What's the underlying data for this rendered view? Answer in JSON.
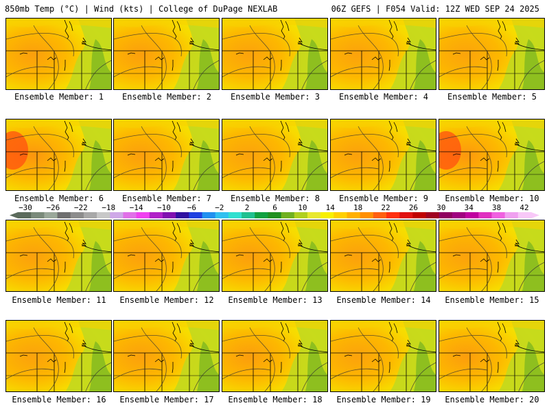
{
  "header": {
    "left": "850mb Temp (°C) | Wind (kts) | College of DuPage NEXLAB",
    "right": "06Z GEFS | F054 Valid: 12Z WED SEP 24 2025"
  },
  "members": [
    {
      "label": "Ensemble Member: 1",
      "heat": 0.55
    },
    {
      "label": "Ensemble Member: 2",
      "heat": 0.55
    },
    {
      "label": "Ensemble Member: 3",
      "heat": 0.45
    },
    {
      "label": "Ensemble Member: 4",
      "heat": 0.45
    },
    {
      "label": "Ensemble Member: 5",
      "heat": 0.4
    },
    {
      "label": "Ensemble Member: 6",
      "heat": 0.8
    },
    {
      "label": "Ensemble Member: 7",
      "heat": 0.55
    },
    {
      "label": "Ensemble Member: 8",
      "heat": 0.45
    },
    {
      "label": "Ensemble Member: 9",
      "heat": 0.5
    },
    {
      "label": "Ensemble Member: 10",
      "heat": 0.75
    },
    {
      "label": "Ensemble Member: 11",
      "heat": 0.5
    },
    {
      "label": "Ensemble Member: 12",
      "heat": 0.5
    },
    {
      "label": "Ensemble Member: 13",
      "heat": 0.55
    },
    {
      "label": "Ensemble Member: 14",
      "heat": 0.5
    },
    {
      "label": "Ensemble Member: 15",
      "heat": 0.45
    },
    {
      "label": "Ensemble Member: 16",
      "heat": 0.45
    },
    {
      "label": "Ensemble Member: 17",
      "heat": 0.5
    },
    {
      "label": "Ensemble Member: 18",
      "heat": 0.6
    },
    {
      "label": "Ensemble Member: 19",
      "heat": 0.45
    },
    {
      "label": "Ensemble Member: 20",
      "heat": 0.6
    }
  ],
  "colorbar": {
    "ticks": [
      "−30",
      "−26",
      "−22",
      "−18",
      "−14",
      "−10",
      "−6",
      "−2",
      "2",
      "6",
      "10",
      "14",
      "18",
      "22",
      "26",
      "30",
      "34",
      "38",
      "42"
    ],
    "colors": [
      "#5c6b5c",
      "#7a8a7a",
      "#9aa89a",
      "#6f6f6f",
      "#8c8c8c",
      "#a8a8a8",
      "#c8c8c8",
      "#cfa8e8",
      "#e070e8",
      "#f040f0",
      "#b020c8",
      "#8010b0",
      "#3010a0",
      "#2040e0",
      "#2090f0",
      "#30c0f0",
      "#30e0d0",
      "#20c090",
      "#10a040",
      "#209020",
      "#70b020",
      "#b0d020",
      "#e8e830",
      "#f8f000",
      "#ffd000",
      "#ffb000",
      "#ff9000",
      "#ff6010",
      "#ff3010",
      "#e01010",
      "#c00000",
      "#a00020",
      "#900060",
      "#a00080",
      "#c000a0",
      "#e030c0",
      "#f060e0",
      "#f0a0f0",
      "#f8c8f8"
    ]
  }
}
